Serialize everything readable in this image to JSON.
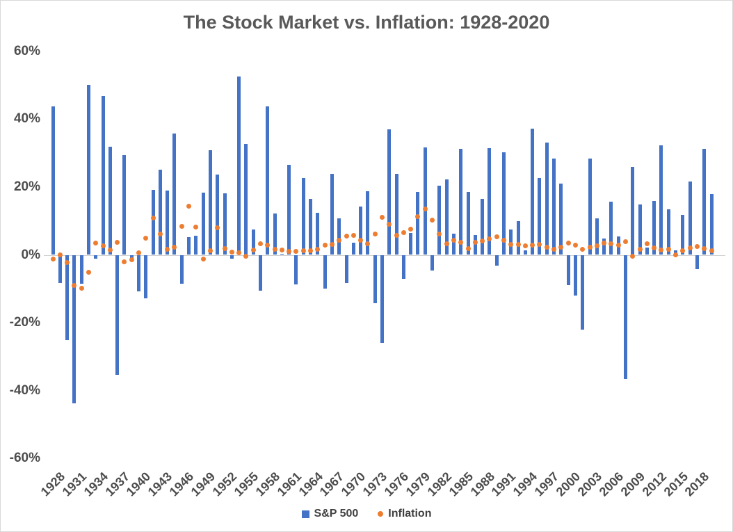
{
  "title": "The Stock Market vs. Inflation: 1928-2020",
  "legend": {
    "sp500": "S&P 500",
    "inflation": "Inflation"
  },
  "colors": {
    "sp500": "#4472C4",
    "inflation": "#ED7D31",
    "axis_line": "#CFCFCF",
    "text": "#595959",
    "border": "#D9D9D9"
  },
  "chart_data": {
    "type": "bar",
    "title": "The Stock Market vs. Inflation: 1928-2020",
    "xlabel": "",
    "ylabel": "",
    "ylim": [
      -60,
      60
    ],
    "grid": false,
    "legend_position": "bottom",
    "y_ticks": [
      {
        "label": "60%",
        "value": 60
      },
      {
        "label": "40%",
        "value": 40
      },
      {
        "label": "20%",
        "value": 20
      },
      {
        "label": "0%",
        "value": 0
      },
      {
        "label": "-20%",
        "value": -20
      },
      {
        "label": "-40%",
        "value": -40
      },
      {
        "label": "-60%",
        "value": -60
      }
    ],
    "x_tick_interval": 3,
    "x_tick_labels": [
      "1928",
      "1931",
      "1934",
      "1937",
      "1940",
      "1943",
      "1946",
      "1949",
      "1952",
      "1955",
      "1958",
      "1961",
      "1964",
      "1967",
      "1970",
      "1973",
      "1976",
      "1979",
      "1982",
      "1985",
      "1988",
      "1991",
      "1994",
      "1997",
      "2000",
      "2003",
      "2006",
      "2009",
      "2012",
      "2015",
      "2018"
    ],
    "categories": [
      1928,
      1929,
      1930,
      1931,
      1932,
      1933,
      1934,
      1935,
      1936,
      1937,
      1938,
      1939,
      1940,
      1941,
      1942,
      1943,
      1944,
      1945,
      1946,
      1947,
      1948,
      1949,
      1950,
      1951,
      1952,
      1953,
      1954,
      1955,
      1956,
      1957,
      1958,
      1959,
      1960,
      1961,
      1962,
      1963,
      1964,
      1965,
      1966,
      1967,
      1968,
      1969,
      1970,
      1971,
      1972,
      1973,
      1974,
      1975,
      1976,
      1977,
      1978,
      1979,
      1980,
      1981,
      1982,
      1983,
      1984,
      1985,
      1986,
      1987,
      1988,
      1989,
      1990,
      1991,
      1992,
      1993,
      1994,
      1995,
      1996,
      1997,
      1998,
      1999,
      2000,
      2001,
      2002,
      2003,
      2004,
      2005,
      2006,
      2007,
      2008,
      2009,
      2010,
      2011,
      2012,
      2013,
      2014,
      2015,
      2016,
      2017,
      2018,
      2019,
      2020
    ],
    "series": [
      {
        "name": "S&P 500",
        "type": "bar",
        "color": "#4472C4",
        "values": [
          43.8,
          -8.3,
          -25.1,
          -43.8,
          -8.6,
          50.0,
          -1.2,
          46.7,
          31.9,
          -35.3,
          29.3,
          -1.1,
          -10.7,
          -12.8,
          19.2,
          25.1,
          19.0,
          35.8,
          -8.4,
          5.2,
          5.7,
          18.3,
          30.8,
          23.7,
          18.2,
          -1.2,
          52.6,
          32.6,
          7.4,
          -10.5,
          43.7,
          12.1,
          0.3,
          26.6,
          -8.8,
          22.6,
          16.4,
          12.4,
          -10.0,
          23.8,
          10.8,
          -8.2,
          3.6,
          14.2,
          18.8,
          -14.3,
          -25.9,
          37.0,
          23.8,
          -7.0,
          6.5,
          18.5,
          31.7,
          -4.7,
          20.4,
          22.3,
          6.2,
          31.2,
          18.5,
          5.8,
          16.5,
          31.5,
          -3.1,
          30.2,
          7.5,
          10.0,
          1.3,
          37.2,
          22.7,
          33.1,
          28.3,
          20.9,
          -9.0,
          -11.9,
          -22.0,
          28.4,
          10.7,
          4.8,
          15.6,
          5.5,
          -36.6,
          25.9,
          14.8,
          2.1,
          15.9,
          32.2,
          13.5,
          1.4,
          11.8,
          21.6,
          -4.2,
          31.2,
          18.0
        ]
      },
      {
        "name": "Inflation",
        "type": "scatter",
        "color": "#ED7D31",
        "values": [
          -1.2,
          0.0,
          -2.3,
          -9.0,
          -9.9,
          -5.1,
          3.4,
          2.6,
          1.5,
          3.6,
          -2.1,
          -1.4,
          0.7,
          5.0,
          10.9,
          6.1,
          1.7,
          2.3,
          8.3,
          14.4,
          8.1,
          -1.2,
          1.3,
          7.9,
          1.9,
          0.8,
          0.7,
          -0.4,
          1.5,
          3.3,
          2.8,
          1.7,
          1.4,
          1.0,
          1.0,
          1.3,
          1.3,
          1.6,
          2.9,
          3.1,
          4.2,
          5.5,
          5.7,
          4.4,
          3.2,
          6.2,
          11.0,
          9.1,
          5.8,
          6.5,
          7.6,
          11.3,
          13.5,
          10.3,
          6.2,
          3.2,
          4.3,
          3.6,
          1.9,
          3.6,
          4.1,
          4.8,
          5.4,
          4.2,
          3.0,
          3.0,
          2.6,
          2.8,
          3.0,
          2.3,
          1.6,
          2.2,
          3.4,
          2.8,
          1.6,
          2.3,
          2.7,
          3.4,
          3.2,
          2.8,
          3.8,
          -0.4,
          1.6,
          3.2,
          2.1,
          1.5,
          1.6,
          0.1,
          1.3,
          2.1,
          2.4,
          1.8,
          1.2
        ]
      }
    ]
  }
}
